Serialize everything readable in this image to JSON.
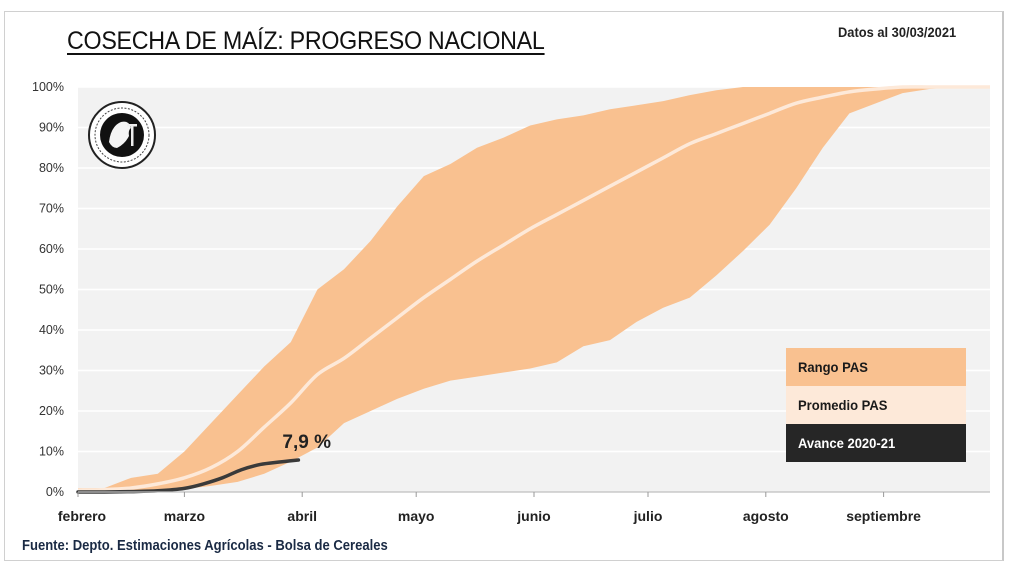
{
  "title": "COSECHA DE MAÍZ: PROGRESO NACIONAL",
  "date_note": "Datos al 30/03/2021",
  "source": "Fuente: Depto. Estimaciones Agrícolas - Bolsa de Cereales",
  "logo": {
    "icon": "bolsa-de-cereales-seal-icon",
    "text": "Comercio · Trabajo · Buenos Aires · 1854"
  },
  "colors": {
    "range": "#F9C190",
    "average": "#FDE9D9",
    "current": "#3a3a3a",
    "plot_bg": "#F2F2F2",
    "grid": "#FFFFFF",
    "legend_current_bg": "#262626"
  },
  "legend": [
    {
      "label": "Rango PAS",
      "series": "range"
    },
    {
      "label": "Promedio PAS",
      "series": "average"
    },
    {
      "label": "Avance 2020-21",
      "series": "current"
    }
  ],
  "chart_data": {
    "type": "area",
    "title": "COSECHA DE MAÍZ: PROGRESO NACIONAL",
    "xlabel": "",
    "ylabel": "",
    "x_unit": "days since 1 Feb",
    "xlim": [
      0,
      240
    ],
    "ylim": [
      0,
      100
    ],
    "y_ticks": [
      0,
      10,
      20,
      30,
      40,
      50,
      60,
      70,
      80,
      90,
      100
    ],
    "y_tick_labels": [
      "0%",
      "10%",
      "20%",
      "30%",
      "40%",
      "50%",
      "60%",
      "70%",
      "80%",
      "90%",
      "100%"
    ],
    "x_ticks": [
      0,
      28,
      59,
      89,
      120,
      150,
      181,
      212
    ],
    "x_tick_labels": [
      "febrero",
      "marzo",
      "abril",
      "mayo",
      "junio",
      "julio",
      "agosto",
      "septiembre"
    ],
    "grid": true,
    "legend_position": "bottom-right",
    "series": [
      {
        "name": "Rango PAS (max)",
        "x": [
          0,
          7,
          14,
          21,
          28,
          35,
          42,
          49,
          56,
          63,
          70,
          77,
          84,
          91,
          98,
          105,
          112,
          119,
          126,
          133,
          140,
          147,
          154,
          161,
          168,
          175,
          182,
          189,
          196,
          203,
          210,
          217,
          224,
          231,
          240
        ],
        "values": [
          1,
          1,
          3.5,
          4.5,
          10,
          17,
          24,
          31,
          37,
          50,
          55,
          62,
          70.5,
          78,
          81,
          85,
          87.5,
          90.5,
          92,
          93,
          94.5,
          95.5,
          96.5,
          98,
          99.2,
          100,
          100,
          100,
          100,
          100,
          100,
          100,
          100,
          100,
          100
        ]
      },
      {
        "name": "Rango PAS (min)",
        "x": [
          0,
          7,
          14,
          21,
          28,
          35,
          42,
          49,
          56,
          63,
          70,
          77,
          84,
          91,
          98,
          105,
          112,
          119,
          126,
          133,
          140,
          147,
          154,
          161,
          168,
          175,
          182,
          189,
          196,
          203,
          210,
          217,
          224,
          231,
          240
        ],
        "values": [
          0,
          0,
          0,
          0.3,
          0.7,
          1.5,
          2.5,
          4.5,
          7.5,
          11,
          17,
          20,
          23,
          25.5,
          27.5,
          28.5,
          29.5,
          30.5,
          32,
          36,
          37.5,
          42,
          45.5,
          48,
          53.5,
          59.5,
          66,
          75,
          85,
          93.5,
          96,
          98.5,
          99.5,
          100,
          100
        ]
      },
      {
        "name": "Promedio PAS",
        "x": [
          0,
          7,
          14,
          21,
          28,
          35,
          42,
          49,
          56,
          63,
          70,
          77,
          84,
          91,
          98,
          105,
          112,
          119,
          126,
          133,
          140,
          147,
          154,
          161,
          168,
          175,
          182,
          189,
          196,
          203,
          210,
          217,
          224,
          231,
          240
        ],
        "values": [
          0.5,
          0.6,
          1,
          2,
          3.5,
          6,
          10,
          16,
          22,
          29,
          33,
          38,
          43,
          48,
          52.5,
          57,
          61,
          65,
          68.5,
          72,
          75.5,
          79,
          82.5,
          86,
          88.5,
          91,
          93.5,
          96,
          97.5,
          98.8,
          99.5,
          100,
          100,
          100,
          100
        ]
      },
      {
        "name": "Avance 2020-21",
        "x": [
          0,
          7,
          14,
          21,
          28,
          33,
          38,
          43,
          48,
          53,
          58
        ],
        "values": [
          0,
          0,
          0.1,
          0.3,
          0.9,
          2,
          3.5,
          5.5,
          6.8,
          7.4,
          7.9
        ]
      }
    ],
    "annotations": [
      {
        "text": "7,9 %",
        "x": 58,
        "y": 7.9,
        "series": "Avance 2020-21"
      }
    ]
  }
}
